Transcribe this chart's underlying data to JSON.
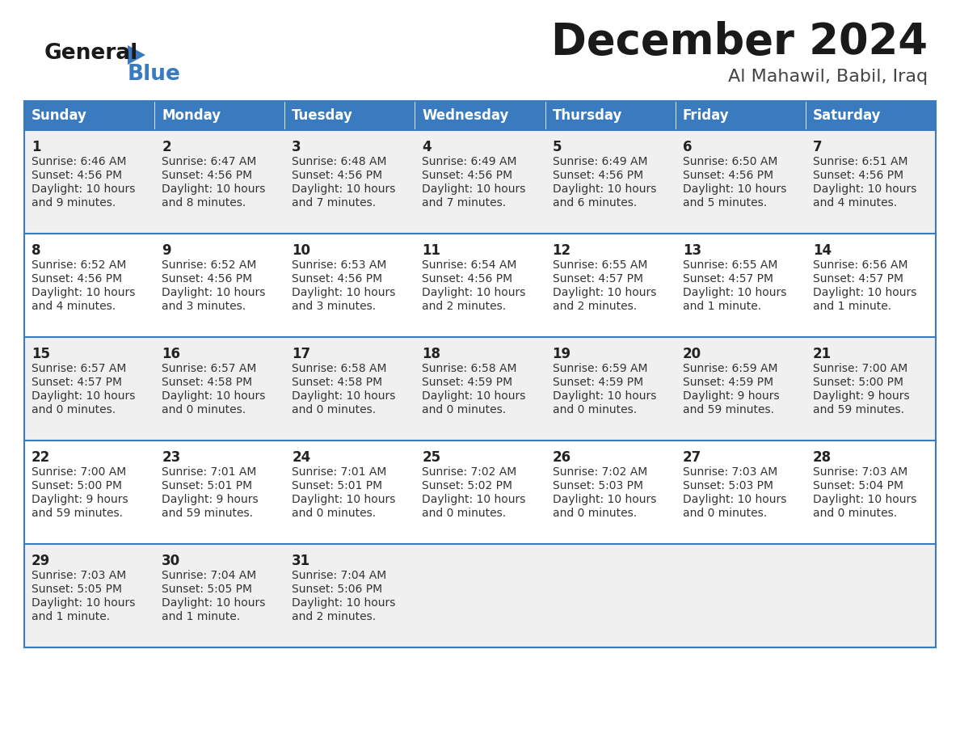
{
  "title": "December 2024",
  "subtitle": "Al Mahawil, Babil, Iraq",
  "header_color": "#3a7abf",
  "header_text_color": "#ffffff",
  "day_names": [
    "Sunday",
    "Monday",
    "Tuesday",
    "Wednesday",
    "Thursday",
    "Friday",
    "Saturday"
  ],
  "row_color_even": "#f0f0f0",
  "row_color_odd": "#ffffff",
  "border_color": "#3a7abf",
  "text_color": "#333333",
  "background_color": "#ffffff",
  "calendar_data": [
    [
      {
        "day": 1,
        "sunrise": "6:46 AM",
        "sunset": "4:56 PM",
        "daylight_line1": "Daylight: 10 hours",
        "daylight_line2": "and 9 minutes."
      },
      {
        "day": 2,
        "sunrise": "6:47 AM",
        "sunset": "4:56 PM",
        "daylight_line1": "Daylight: 10 hours",
        "daylight_line2": "and 8 minutes."
      },
      {
        "day": 3,
        "sunrise": "6:48 AM",
        "sunset": "4:56 PM",
        "daylight_line1": "Daylight: 10 hours",
        "daylight_line2": "and 7 minutes."
      },
      {
        "day": 4,
        "sunrise": "6:49 AM",
        "sunset": "4:56 PM",
        "daylight_line1": "Daylight: 10 hours",
        "daylight_line2": "and 7 minutes."
      },
      {
        "day": 5,
        "sunrise": "6:49 AM",
        "sunset": "4:56 PM",
        "daylight_line1": "Daylight: 10 hours",
        "daylight_line2": "and 6 minutes."
      },
      {
        "day": 6,
        "sunrise": "6:50 AM",
        "sunset": "4:56 PM",
        "daylight_line1": "Daylight: 10 hours",
        "daylight_line2": "and 5 minutes."
      },
      {
        "day": 7,
        "sunrise": "6:51 AM",
        "sunset": "4:56 PM",
        "daylight_line1": "Daylight: 10 hours",
        "daylight_line2": "and 4 minutes."
      }
    ],
    [
      {
        "day": 8,
        "sunrise": "6:52 AM",
        "sunset": "4:56 PM",
        "daylight_line1": "Daylight: 10 hours",
        "daylight_line2": "and 4 minutes."
      },
      {
        "day": 9,
        "sunrise": "6:52 AM",
        "sunset": "4:56 PM",
        "daylight_line1": "Daylight: 10 hours",
        "daylight_line2": "and 3 minutes."
      },
      {
        "day": 10,
        "sunrise": "6:53 AM",
        "sunset": "4:56 PM",
        "daylight_line1": "Daylight: 10 hours",
        "daylight_line2": "and 3 minutes."
      },
      {
        "day": 11,
        "sunrise": "6:54 AM",
        "sunset": "4:56 PM",
        "daylight_line1": "Daylight: 10 hours",
        "daylight_line2": "and 2 minutes."
      },
      {
        "day": 12,
        "sunrise": "6:55 AM",
        "sunset": "4:57 PM",
        "daylight_line1": "Daylight: 10 hours",
        "daylight_line2": "and 2 minutes."
      },
      {
        "day": 13,
        "sunrise": "6:55 AM",
        "sunset": "4:57 PM",
        "daylight_line1": "Daylight: 10 hours",
        "daylight_line2": "and 1 minute."
      },
      {
        "day": 14,
        "sunrise": "6:56 AM",
        "sunset": "4:57 PM",
        "daylight_line1": "Daylight: 10 hours",
        "daylight_line2": "and 1 minute."
      }
    ],
    [
      {
        "day": 15,
        "sunrise": "6:57 AM",
        "sunset": "4:57 PM",
        "daylight_line1": "Daylight: 10 hours",
        "daylight_line2": "and 0 minutes."
      },
      {
        "day": 16,
        "sunrise": "6:57 AM",
        "sunset": "4:58 PM",
        "daylight_line1": "Daylight: 10 hours",
        "daylight_line2": "and 0 minutes."
      },
      {
        "day": 17,
        "sunrise": "6:58 AM",
        "sunset": "4:58 PM",
        "daylight_line1": "Daylight: 10 hours",
        "daylight_line2": "and 0 minutes."
      },
      {
        "day": 18,
        "sunrise": "6:58 AM",
        "sunset": "4:59 PM",
        "daylight_line1": "Daylight: 10 hours",
        "daylight_line2": "and 0 minutes."
      },
      {
        "day": 19,
        "sunrise": "6:59 AM",
        "sunset": "4:59 PM",
        "daylight_line1": "Daylight: 10 hours",
        "daylight_line2": "and 0 minutes."
      },
      {
        "day": 20,
        "sunrise": "6:59 AM",
        "sunset": "4:59 PM",
        "daylight_line1": "Daylight: 9 hours",
        "daylight_line2": "and 59 minutes."
      },
      {
        "day": 21,
        "sunrise": "7:00 AM",
        "sunset": "5:00 PM",
        "daylight_line1": "Daylight: 9 hours",
        "daylight_line2": "and 59 minutes."
      }
    ],
    [
      {
        "day": 22,
        "sunrise": "7:00 AM",
        "sunset": "5:00 PM",
        "daylight_line1": "Daylight: 9 hours",
        "daylight_line2": "and 59 minutes."
      },
      {
        "day": 23,
        "sunrise": "7:01 AM",
        "sunset": "5:01 PM",
        "daylight_line1": "Daylight: 9 hours",
        "daylight_line2": "and 59 minutes."
      },
      {
        "day": 24,
        "sunrise": "7:01 AM",
        "sunset": "5:01 PM",
        "daylight_line1": "Daylight: 10 hours",
        "daylight_line2": "and 0 minutes."
      },
      {
        "day": 25,
        "sunrise": "7:02 AM",
        "sunset": "5:02 PM",
        "daylight_line1": "Daylight: 10 hours",
        "daylight_line2": "and 0 minutes."
      },
      {
        "day": 26,
        "sunrise": "7:02 AM",
        "sunset": "5:03 PM",
        "daylight_line1": "Daylight: 10 hours",
        "daylight_line2": "and 0 minutes."
      },
      {
        "day": 27,
        "sunrise": "7:03 AM",
        "sunset": "5:03 PM",
        "daylight_line1": "Daylight: 10 hours",
        "daylight_line2": "and 0 minutes."
      },
      {
        "day": 28,
        "sunrise": "7:03 AM",
        "sunset": "5:04 PM",
        "daylight_line1": "Daylight: 10 hours",
        "daylight_line2": "and 0 minutes."
      }
    ],
    [
      {
        "day": 29,
        "sunrise": "7:03 AM",
        "sunset": "5:05 PM",
        "daylight_line1": "Daylight: 10 hours",
        "daylight_line2": "and 1 minute."
      },
      {
        "day": 30,
        "sunrise": "7:04 AM",
        "sunset": "5:05 PM",
        "daylight_line1": "Daylight: 10 hours",
        "daylight_line2": "and 1 minute."
      },
      {
        "day": 31,
        "sunrise": "7:04 AM",
        "sunset": "5:06 PM",
        "daylight_line1": "Daylight: 10 hours",
        "daylight_line2": "and 2 minutes."
      },
      null,
      null,
      null,
      null
    ]
  ]
}
